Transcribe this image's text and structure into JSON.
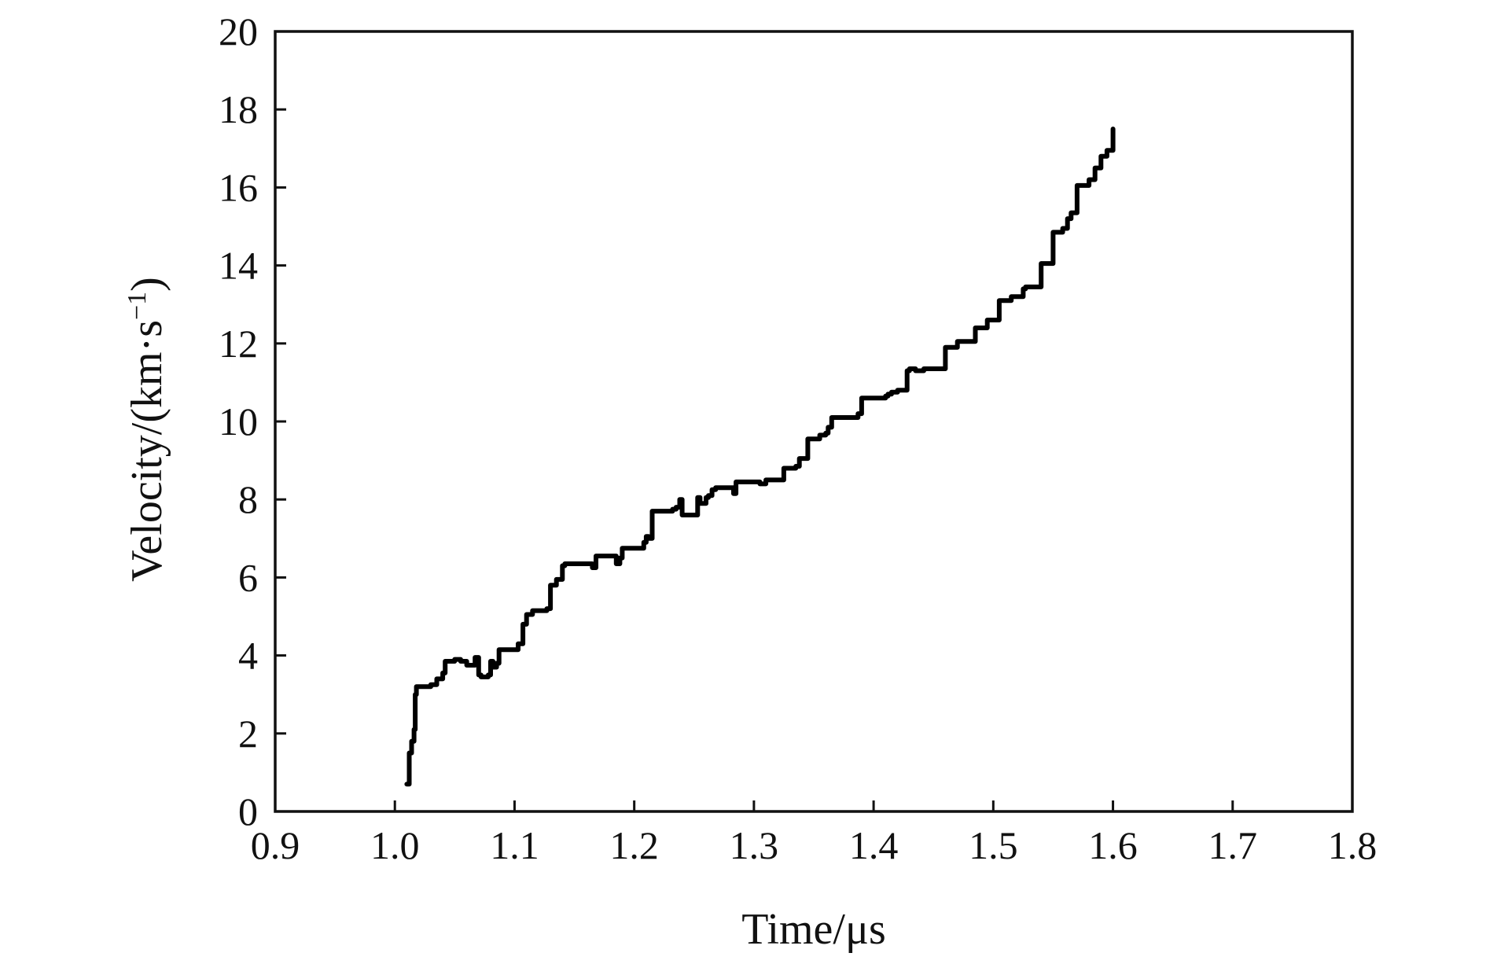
{
  "chart_data": {
    "type": "line",
    "title": "",
    "xlabel": "Time/μs",
    "ylabel": "Velocity/(km·s",
    "ylabel_superscript": "−1",
    "ylabel_close": ")",
    "xlim": [
      0.9,
      1.8
    ],
    "ylim": [
      0,
      20
    ],
    "xticks": [
      "0.9",
      "1.0",
      "1.1",
      "1.2",
      "1.3",
      "1.4",
      "1.5",
      "1.6",
      "1.7",
      "1.8"
    ],
    "yticks": [
      "0",
      "2",
      "4",
      "6",
      "8",
      "10",
      "12",
      "14",
      "16",
      "18",
      "20"
    ],
    "grid": false,
    "legend": "none",
    "line_color": "#000000",
    "series": [
      {
        "x": [
          1.01,
          1.012,
          1.014,
          1.016,
          1.017,
          1.018,
          1.025,
          1.03,
          1.035,
          1.04,
          1.042,
          1.05,
          1.055,
          1.06,
          1.065,
          1.067,
          1.07,
          1.072,
          1.078,
          1.08,
          1.082,
          1.085,
          1.087,
          1.09,
          1.098,
          1.103,
          1.107,
          1.11,
          1.115,
          1.122,
          1.127,
          1.13,
          1.135,
          1.14,
          1.142,
          1.16,
          1.165,
          1.168,
          1.18,
          1.185,
          1.188,
          1.19,
          1.2,
          1.205,
          1.208,
          1.21,
          1.212,
          1.215,
          1.225,
          1.232,
          1.235,
          1.238,
          1.24,
          1.242,
          1.245,
          1.25,
          1.253,
          1.255,
          1.26,
          1.262,
          1.265,
          1.268,
          1.28,
          1.283,
          1.285,
          1.3,
          1.305,
          1.31,
          1.325,
          1.33,
          1.335,
          1.338,
          1.345,
          1.35,
          1.355,
          1.36,
          1.362,
          1.365,
          1.375,
          1.385,
          1.387,
          1.39,
          1.405,
          1.41,
          1.412,
          1.415,
          1.42,
          1.428,
          1.43,
          1.435,
          1.44,
          1.442,
          1.445,
          1.46,
          1.465,
          1.467,
          1.47,
          1.485,
          1.49,
          1.492,
          1.495,
          1.505,
          1.51,
          1.512,
          1.515,
          1.525,
          1.527,
          1.53,
          1.535,
          1.537,
          1.54,
          1.55,
          1.555,
          1.558,
          1.562,
          1.565,
          1.57,
          1.575,
          1.578,
          1.58,
          1.585,
          1.59,
          1.595,
          1.6
        ],
        "y": [
          0.7,
          1.5,
          1.8,
          2.1,
          3.0,
          3.2,
          3.2,
          3.25,
          3.4,
          3.55,
          3.85,
          3.9,
          3.85,
          3.75,
          3.75,
          3.95,
          3.5,
          3.45,
          3.5,
          3.85,
          3.7,
          3.8,
          4.15,
          4.15,
          4.15,
          4.3,
          4.8,
          5.05,
          5.15,
          5.15,
          5.2,
          5.8,
          5.95,
          6.3,
          6.35,
          6.35,
          6.25,
          6.55,
          6.55,
          6.35,
          6.5,
          6.75,
          6.75,
          6.75,
          6.9,
          7.05,
          7.0,
          7.7,
          7.7,
          7.75,
          7.8,
          8.0,
          7.6,
          7.6,
          7.6,
          7.6,
          8.05,
          7.9,
          8.05,
          8.1,
          8.25,
          8.3,
          8.3,
          8.15,
          8.45,
          8.45,
          8.4,
          8.5,
          8.8,
          8.8,
          8.85,
          9.05,
          9.55,
          9.55,
          9.65,
          9.7,
          9.85,
          10.1,
          10.1,
          10.1,
          10.2,
          10.6,
          10.6,
          10.65,
          10.7,
          10.75,
          10.8,
          11.3,
          11.35,
          11.3,
          11.3,
          11.35,
          11.35,
          11.9,
          11.9,
          11.9,
          12.05,
          12.4,
          12.4,
          12.4,
          12.6,
          13.1,
          13.1,
          13.1,
          13.2,
          13.4,
          13.45,
          13.45,
          13.45,
          13.45,
          14.05,
          14.85,
          14.85,
          14.95,
          15.2,
          15.35,
          16.05,
          16.05,
          16.05,
          16.2,
          16.5,
          16.8,
          16.95,
          17.5
        ]
      }
    ]
  }
}
